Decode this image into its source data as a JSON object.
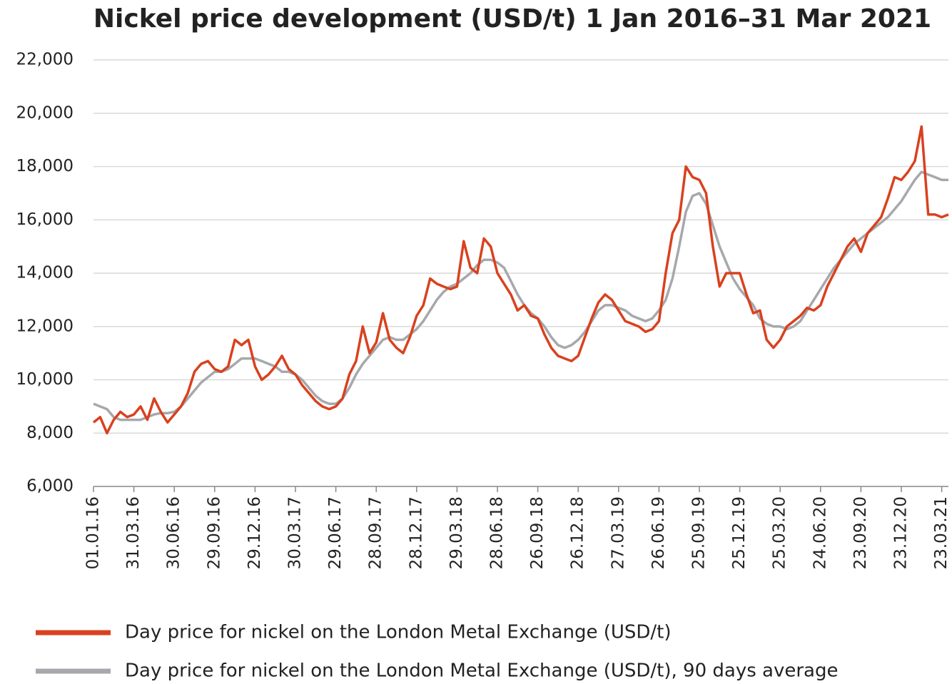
{
  "chart_data": {
    "type": "line",
    "title": "Nickel price development (USD/t) 1 Jan 2016–31 Mar 2021",
    "categories": [
      "01.01.16",
      null,
      null,
      null,
      null,
      null,
      "31.03.16",
      null,
      null,
      null,
      null,
      null,
      "30.06.16",
      null,
      null,
      null,
      null,
      null,
      "29.09.16",
      null,
      null,
      null,
      null,
      null,
      "29.12.16",
      null,
      null,
      null,
      null,
      null,
      "30.03.17",
      null,
      null,
      null,
      null,
      null,
      "29.06.17",
      null,
      null,
      null,
      null,
      null,
      "28.09.17",
      null,
      null,
      null,
      null,
      null,
      "28.12.17",
      null,
      null,
      null,
      null,
      null,
      "29.03.18",
      null,
      null,
      null,
      null,
      null,
      "28.06.18",
      null,
      null,
      null,
      null,
      null,
      "26.09.18",
      null,
      null,
      null,
      null,
      null,
      "26.12.18",
      null,
      null,
      null,
      null,
      null,
      "27.03.19",
      null,
      null,
      null,
      null,
      null,
      "26.06.19",
      null,
      null,
      null,
      null,
      null,
      "25.09.19",
      null,
      null,
      null,
      null,
      null,
      "25.12.19",
      null,
      null,
      null,
      null,
      null,
      "25.03.20",
      null,
      null,
      null,
      null,
      null,
      "24.06.20",
      null,
      null,
      null,
      null,
      null,
      "23.09.20",
      null,
      null,
      null,
      null,
      null,
      "23.12.20",
      null,
      null,
      null,
      null,
      null,
      "23.03.21",
      null
    ],
    "series": [
      {
        "name": "Day price for nickel on the London Metal Exchange (USD/t)",
        "color": "#d9411e",
        "values": [
          8400,
          8600,
          8000,
          8500,
          8800,
          8600,
          8700,
          9000,
          8500,
          9300,
          8800,
          8400,
          8700,
          9000,
          9500,
          10300,
          10600,
          10700,
          10400,
          10300,
          10500,
          11500,
          11300,
          11500,
          10500,
          10000,
          10200,
          10500,
          10900,
          10400,
          10200,
          9800,
          9500,
          9200,
          9000,
          8900,
          9000,
          9300,
          10200,
          10700,
          12000,
          11000,
          11400,
          12500,
          11500,
          11200,
          11000,
          11600,
          12400,
          12800,
          13800,
          13600,
          13500,
          13400,
          13500,
          15200,
          14200,
          14000,
          15300,
          15000,
          14000,
          13600,
          13200,
          12600,
          12800,
          12400,
          12300,
          11700,
          11200,
          10900,
          10800,
          10700,
          10900,
          11600,
          12300,
          12900,
          13200,
          13000,
          12600,
          12200,
          12100,
          12000,
          11800,
          11900,
          12200,
          14000,
          15500,
          16000,
          18000,
          17600,
          17500,
          17000,
          15000,
          13500,
          14000,
          14000,
          14000,
          13200,
          12500,
          12600,
          11500,
          11200,
          11500,
          12000,
          12200,
          12400,
          12700,
          12600,
          12800,
          13500,
          14000,
          14500,
          15000,
          15300,
          14800,
          15500,
          15800,
          16100,
          16800,
          17600,
          17500,
          17800,
          18200,
          19500,
          16200,
          16200,
          16100,
          16200
        ]
      },
      {
        "name": "Day price for nickel on the London Metal Exchange (USD/t), 90 days average",
        "color": "#a6a8ab",
        "values": [
          9100,
          9000,
          8900,
          8600,
          8500,
          8500,
          8500,
          8500,
          8600,
          8700,
          8750,
          8750,
          8800,
          9000,
          9300,
          9600,
          9900,
          10100,
          10300,
          10300,
          10400,
          10600,
          10800,
          10800,
          10800,
          10700,
          10600,
          10500,
          10300,
          10300,
          10200,
          10000,
          9700,
          9400,
          9200,
          9100,
          9100,
          9300,
          9700,
          10200,
          10600,
          10900,
          11200,
          11500,
          11600,
          11500,
          11500,
          11700,
          11900,
          12200,
          12600,
          13000,
          13300,
          13500,
          13600,
          13800,
          14000,
          14300,
          14500,
          14500,
          14400,
          14200,
          13700,
          13200,
          12800,
          12500,
          12300,
          12000,
          11600,
          11300,
          11200,
          11300,
          11500,
          11800,
          12200,
          12600,
          12800,
          12800,
          12700,
          12600,
          12400,
          12300,
          12200,
          12300,
          12600,
          13000,
          13800,
          15000,
          16300,
          16900,
          17000,
          16600,
          15800,
          15000,
          14400,
          13800,
          13400,
          13100,
          12800,
          12300,
          12100,
          12000,
          12000,
          11900,
          12000,
          12200,
          12600,
          13000,
          13400,
          13800,
          14200,
          14500,
          14800,
          15100,
          15300,
          15500,
          15700,
          15900,
          16100,
          16400,
          16700,
          17100,
          17500,
          17800,
          17700,
          17600,
          17500,
          17500
        ]
      }
    ],
    "ylim": [
      6000,
      22000
    ],
    "yticks": [
      {
        "value": 6000,
        "label": "6,000"
      },
      {
        "value": 8000,
        "label": "8,000"
      },
      {
        "value": 10000,
        "label": "10,000"
      },
      {
        "value": 12000,
        "label": "12,000"
      },
      {
        "value": 14000,
        "label": "14,000"
      },
      {
        "value": 16000,
        "label": "16,000"
      },
      {
        "value": 18000,
        "label": "18,000"
      },
      {
        "value": 20000,
        "label": "20,000"
      },
      {
        "value": 22000,
        "label": "22,000"
      }
    ],
    "grid": true
  }
}
